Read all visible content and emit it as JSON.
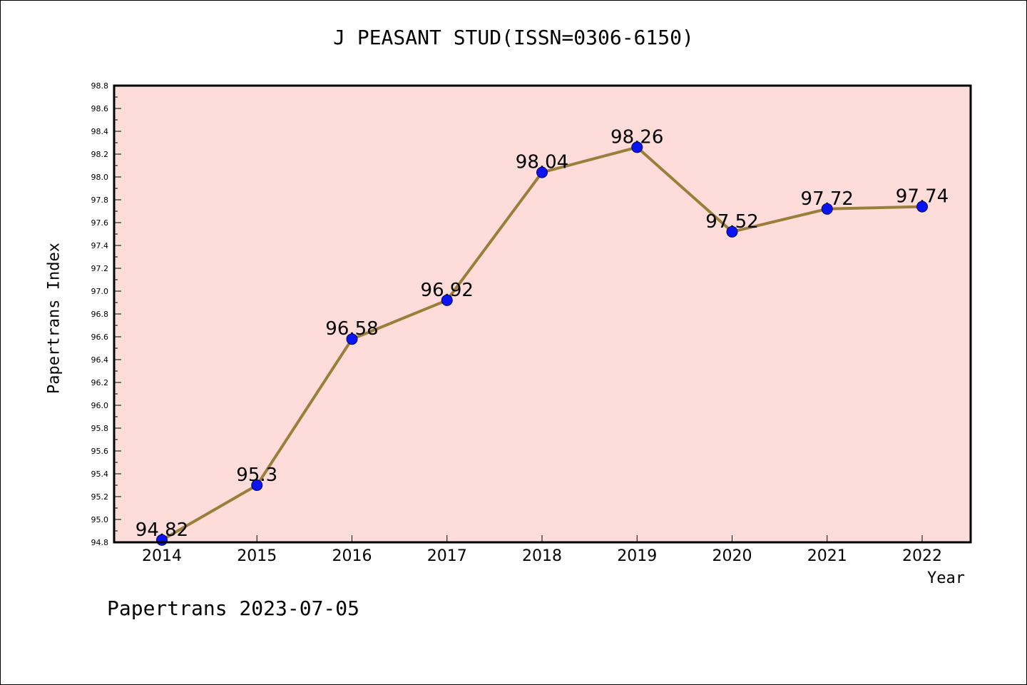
{
  "chart_data": {
    "type": "line",
    "title": "J PEASANT STUD(ISSN=0306-6150)",
    "xlabel": "Year",
    "ylabel": "Papertrans Index",
    "x": [
      "2014",
      "2015",
      "2016",
      "2017",
      "2018",
      "2019",
      "2020",
      "2021",
      "2022"
    ],
    "series": [
      {
        "values": [
          94.82,
          95.3,
          96.58,
          96.92,
          98.04,
          98.26,
          97.52,
          97.72,
          97.74
        ],
        "data_labels": [
          "94.82",
          "95.3",
          "96.58",
          "96.92",
          "98.04",
          "98.26",
          "97.52",
          "97.72",
          "97.74"
        ]
      }
    ],
    "ylim": [
      94.8,
      98.8
    ],
    "yticks": [
      "94.8",
      "95.0",
      "95.2",
      "95.4",
      "95.6",
      "95.8",
      "96.0",
      "96.2",
      "96.4",
      "96.6",
      "96.8",
      "97.0",
      "97.2",
      "97.4",
      "97.6",
      "97.8",
      "98.0",
      "98.2",
      "98.4",
      "98.6",
      "98.8"
    ],
    "grid": false,
    "colors": {
      "plot_background": "#fddcda",
      "line": "#9b7e3a",
      "marker": "#0a14f0"
    }
  },
  "footer": "Papertrans 2023-07-05"
}
